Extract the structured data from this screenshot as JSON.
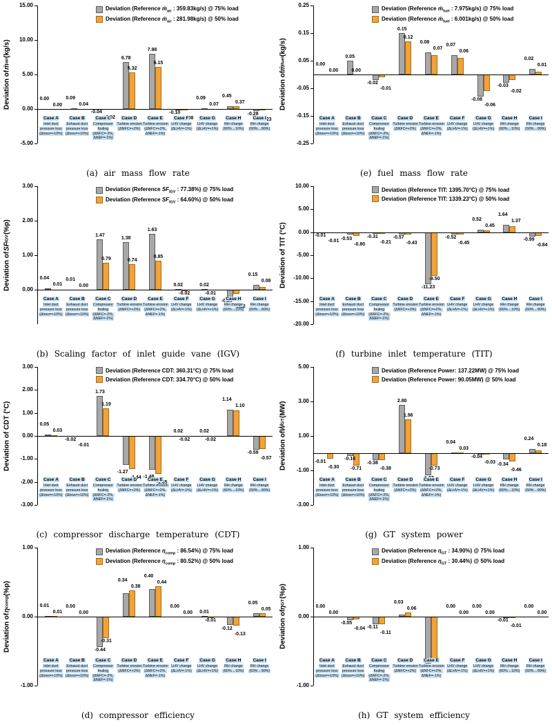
{
  "figure": {
    "background": "#ffffff"
  },
  "colors": {
    "load75": "#A8A8A8",
    "load75_border": "#5B5B5B",
    "load50": "#F2A237",
    "load50_border": "#A06C10",
    "case_highlight": "#C9E2F5",
    "axis": "#000000"
  },
  "cases": [
    {
      "header": "Case A",
      "lines": [
        "Inlet duct",
        "pressure loss",
        "(Δloss=+10%)"
      ]
    },
    {
      "header": "Case B",
      "lines": [
        "Exhaust duct",
        "pressure loss",
        "(Δloss=+10%)"
      ]
    },
    {
      "header": "Case C",
      "lines": [
        "Compressor",
        "fouling",
        "(ΔNFC=-2%,",
        "ΔNEF=-1%)"
      ]
    },
    {
      "header": "Case D",
      "lines": [
        "Turbine erosion",
        "(ΔNFC=+2%)"
      ]
    },
    {
      "header": "Case E",
      "lines": [
        "Turbine erosion",
        "(ΔNFC=+2%,",
        "ΔNEF=-1%)"
      ]
    },
    {
      "header": "Case F",
      "lines": [
        "LHV change",
        "(ΔLHV=-1%)"
      ]
    },
    {
      "header": "Case G",
      "lines": [
        "LHV change",
        "(ΔLHV=+1%)"
      ]
    },
    {
      "header": "Case H",
      "lines": [
        "RH change",
        "(60%→10%)"
      ]
    },
    {
      "header": "Case I",
      "lines": [
        "RH change",
        "(60%→90%)"
      ]
    }
  ],
  "chart_data": [
    {
      "type": "bar",
      "caption": "(a) air mass flow rate",
      "ylabel": {
        "prefix": "Deviation of ",
        "sym": "ṁ",
        "sub": "air",
        "unit": " (kg/s)"
      },
      "ylim": [
        -5,
        15
      ],
      "yticks": [
        15,
        10,
        5,
        0,
        -5
      ],
      "ytick_labels": [
        "15.00",
        "10.00",
        "5.00",
        "0.00",
        "-5.00"
      ],
      "grid": false,
      "legend_position": "top",
      "categories": [
        "Case A",
        "Case B",
        "Case C",
        "Case D",
        "Case E",
        "Case F",
        "Case G",
        "Case H",
        "Case I"
      ],
      "series": [
        {
          "name": "75% load",
          "color": "load75",
          "legend": {
            "pre": "Deviation (Reference ",
            "sym": "ṁ",
            "sub": "air",
            "post": " : 359.83kg/s) @ 75% load"
          },
          "values": [
            0.0,
            0.09,
            -0.04,
            6.78,
            7.98,
            -0.1,
            0.09,
            0.45,
            -0.28
          ]
        },
        {
          "name": "50% load",
          "color": "load50",
          "legend": {
            "pre": "Deviation (Reference ",
            "sym": "ṁ",
            "sub": "air",
            "post": " : 281.98kg/s) @ 50% load"
          },
          "values": [
            0.0,
            0.04,
            -0.02,
            5.32,
            6.15,
            -0.08,
            0.07,
            0.37,
            -0.23
          ]
        }
      ]
    },
    {
      "type": "bar",
      "caption": "(e) fuel mass flow rate",
      "ylabel": {
        "prefix": "Deviation of ",
        "sym": "ṁ",
        "sub": "fuel",
        "unit": " (kg/s)"
      },
      "ylim": [
        -0.25,
        0.25
      ],
      "yticks": [
        0.25,
        0.15,
        0.05,
        -0.05,
        -0.15,
        -0.25
      ],
      "ytick_labels": [
        "0.25",
        "0.15",
        "0.05",
        "-0.05",
        "-0.15",
        "-0.25"
      ],
      "grid": false,
      "legend_position": "top",
      "categories": [
        "Case A",
        "Case B",
        "Case C",
        "Case D",
        "Case E",
        "Case F",
        "Case G",
        "Case H",
        "Case I"
      ],
      "series": [
        {
          "name": "75% load",
          "color": "load75",
          "legend": {
            "pre": "Deviation (Reference ",
            "sym": "ṁ",
            "sub": "fuel",
            "post": " : 7.975kg/s) @ 75% load"
          },
          "values": [
            0.0,
            0.05,
            -0.02,
            0.15,
            0.08,
            0.07,
            -0.08,
            -0.03,
            0.02
          ]
        },
        {
          "name": "50% load",
          "color": "load50",
          "legend": {
            "pre": "Deviation (Reference ",
            "sym": "ṁ",
            "sub": "fuel",
            "post": " : 6.001kg/s) @ 50% load"
          },
          "values": [
            0.0,
            0.0,
            -0.01,
            0.12,
            0.07,
            0.06,
            -0.06,
            -0.02,
            0.01
          ]
        }
      ]
    },
    {
      "type": "bar",
      "caption": "(b) Scaling factor of inlet guide vane (IGV)",
      "ylabel": {
        "prefix": "Deviation of ",
        "sym": "SF",
        "sub": "IGV",
        "unit": " (%p)"
      },
      "ylim": [
        -1,
        3
      ],
      "yticks": [
        3,
        2,
        1,
        0
      ],
      "ytick_labels": [
        "3.00",
        "2.00",
        "1.00",
        "0.00"
      ],
      "grid": false,
      "legend_position": "top",
      "categories": [
        "Case A",
        "Case B",
        "Case C",
        "Case D",
        "Case E",
        "Case F",
        "Case G",
        "Case H",
        "Case I"
      ],
      "series": [
        {
          "name": "75% load",
          "color": "load75",
          "legend": {
            "pre": "Deviation (Reference ",
            "sym": "SF",
            "sub": "IGV",
            "post": " : 77.38%) @ 75% load"
          },
          "values": [
            0.04,
            0.01,
            1.47,
            1.38,
            1.63,
            0.02,
            0.02,
            -0.23,
            0.15
          ]
        },
        {
          "name": "50% load",
          "color": "load50",
          "legend": {
            "pre": "Deviation (Reference ",
            "sym": "SF",
            "sub": "IGV",
            "post": " : 64.60%) @ 50% load"
          },
          "values": [
            0.01,
            0.0,
            0.79,
            0.74,
            0.85,
            -0.02,
            -0.01,
            -0.12,
            0.08
          ]
        }
      ]
    },
    {
      "type": "bar",
      "caption": "(f) turbine inlet temperature (TIT)",
      "ylabel": {
        "prefix": "Deviation of TIT (°C)",
        "sym": "",
        "sub": "",
        "unit": ""
      },
      "ylim": [
        -20,
        10
      ],
      "yticks": [
        10,
        5,
        0,
        -5,
        -10,
        -15,
        -20
      ],
      "ytick_labels": [
        "10.00",
        "5.00",
        "0.00",
        "-5.00",
        "-10.00",
        "-15.00",
        "-20.00"
      ],
      "grid": false,
      "legend_position": "top",
      "categories": [
        "Case A",
        "Case B",
        "Case C",
        "Case D",
        "Case E",
        "Case F",
        "Case G",
        "Case H",
        "Case I"
      ],
      "series": [
        {
          "name": "75% load",
          "color": "load75",
          "legend": {
            "pre": "Deviation (Reference TIT: 1395.70°C) @ 75% load",
            "sym": "",
            "sub": "",
            "post": ""
          },
          "values": [
            -0.01,
            -0.53,
            -0.31,
            -0.57,
            -11.23,
            -0.52,
            0.52,
            1.64,
            -0.99
          ]
        },
        {
          "name": "50% load",
          "color": "load50",
          "legend": {
            "pre": "Deviation (Reference TIT: 1339.23°C) @ 50% load",
            "sym": "",
            "sub": "",
            "post": ""
          },
          "values": [
            -0.01,
            -0.8,
            -0.21,
            -0.43,
            -9.5,
            -0.45,
            0.45,
            1.37,
            -0.84
          ]
        }
      ]
    },
    {
      "type": "bar",
      "caption": "(c) compressor discharge temperature (CDT)",
      "ylabel": {
        "prefix": "Deviation of CDT (°C)",
        "sym": "",
        "sub": "",
        "unit": ""
      },
      "ylim": [
        -3,
        3
      ],
      "yticks": [
        3,
        2,
        1,
        0,
        -1,
        -2,
        -3
      ],
      "ytick_labels": [
        "3.00",
        "2.00",
        "1.00",
        "0.00",
        "-1.00",
        "-2.00",
        "-3.00"
      ],
      "grid": false,
      "legend_position": "top",
      "categories": [
        "Case A",
        "Case B",
        "Case C",
        "Case D",
        "Case E",
        "Case F",
        "Case G",
        "Case H",
        "Case I"
      ],
      "series": [
        {
          "name": "75% load",
          "color": "load75",
          "legend": {
            "pre": "Deviation (Reference CDT: 360.31°C) @ 75% load",
            "sym": "",
            "sub": "",
            "post": ""
          },
          "values": [
            0.05,
            -0.02,
            1.73,
            -1.27,
            -1.48,
            0.02,
            0.02,
            1.14,
            -0.59
          ]
        },
        {
          "name": "50% load",
          "color": "load50",
          "legend": {
            "pre": "Deviation (Reference CDT: 334.70°C) @ 50% load",
            "sym": "",
            "sub": "",
            "post": ""
          },
          "values": [
            0.03,
            -0.01,
            1.19,
            -1.44,
            -1.65,
            -0.02,
            -0.02,
            1.1,
            -0.57
          ]
        }
      ]
    },
    {
      "type": "bar",
      "caption": "(g) GT system power",
      "ylabel": {
        "prefix": "Deviation of ",
        "sym": "Ẇ",
        "sub": "GT",
        "unit": " (MW)"
      },
      "ylim": [
        -3,
        5
      ],
      "yticks": [
        5,
        3,
        1,
        -1,
        -3
      ],
      "ytick_labels": [
        "5.00",
        "3.00",
        "1.00",
        "-1.00",
        "-3.00"
      ],
      "grid": false,
      "legend_position": "top",
      "categories": [
        "Case A",
        "Case B",
        "Case C",
        "Case D",
        "Case E",
        "Case F",
        "Case G",
        "Case H",
        "Case I"
      ],
      "series": [
        {
          "name": "75% load",
          "color": "load75",
          "legend": {
            "pre": "Deviation (Reference Power: 137.22MW) @ 75% load",
            "sym": "",
            "sub": "",
            "post": ""
          },
          "values": [
            -0.01,
            -0.16,
            -0.38,
            2.8,
            -1.27,
            0.04,
            -0.04,
            -0.34,
            0.24
          ]
        },
        {
          "name": "50% load",
          "color": "load50",
          "legend": {
            "pre": "Deviation (Reference Power: 90.05MW) @ 50% load",
            "sym": "",
            "sub": "",
            "post": ""
          },
          "values": [
            -0.3,
            -0.71,
            -0.38,
            1.96,
            -0.73,
            0.03,
            -0.03,
            -0.46,
            0.18
          ]
        }
      ]
    },
    {
      "type": "bar",
      "caption": "(d) compressor efficiency",
      "ylabel": {
        "prefix": "Deviation of ",
        "sym": "η",
        "sub": "comp",
        "unit": " (%p)"
      },
      "ylim": [
        -1,
        1
      ],
      "yticks": [
        1,
        0,
        -1
      ],
      "ytick_labels": [
        "1.00",
        "0.00",
        "-1.00"
      ],
      "grid": false,
      "legend_position": "top",
      "categories": [
        "Case A",
        "Case B",
        "Case C",
        "Case D",
        "Case E",
        "Case F",
        "Case G",
        "Case H",
        "Case I"
      ],
      "series": [
        {
          "name": "75% load",
          "color": "load75",
          "legend": {
            "pre": "Deviation (Reference ",
            "sym": "η",
            "sub": "comp",
            "post": " : 86.54%) @ 75% load"
          },
          "values": [
            0.01,
            0.0,
            -0.44,
            0.34,
            0.4,
            0.0,
            0.01,
            -0.12,
            0.05
          ]
        },
        {
          "name": "50% load",
          "color": "load50",
          "legend": {
            "pre": "Deviation (Reference ",
            "sym": "η",
            "sub": "comp",
            "post": " : 80.52%) @ 50% load"
          },
          "values": [
            0.01,
            0.0,
            -0.31,
            0.38,
            0.44,
            0.0,
            -0.01,
            -0.13,
            0.05
          ]
        }
      ]
    },
    {
      "type": "bar",
      "caption": "(h) GT system efficiency",
      "ylabel": {
        "prefix": "Deviation of ",
        "sym": "η",
        "sub": "GT",
        "unit": " (%p)"
      },
      "ylim": [
        -1,
        1
      ],
      "yticks": [
        1,
        0,
        -1
      ],
      "ytick_labels": [
        "1.00",
        "0.00",
        "-1.00"
      ],
      "grid": false,
      "legend_position": "top",
      "categories": [
        "Case A",
        "Case B",
        "Case C",
        "Case D",
        "Case E",
        "Case F",
        "Case G",
        "Case H",
        "Case I"
      ],
      "series": [
        {
          "name": "75% load",
          "color": "load75",
          "legend": {
            "pre": "Deviation (Reference ",
            "sym": "η",
            "sub": "GT",
            "post": " : 34.90%) @ 75% load"
          },
          "values": [
            0.0,
            -0.05,
            -0.11,
            0.03,
            -0.68,
            0.0,
            0.0,
            -0.01,
            0.0
          ]
        },
        {
          "name": "50% load",
          "color": "load50",
          "legend": {
            "pre": "Deviation (Reference ",
            "sym": "η",
            "sub": "GT",
            "post": " : 30.44%) @ 50% load"
          },
          "values": [
            0.0,
            -0.04,
            -0.11,
            0.06,
            -0.61,
            0.0,
            0.0,
            -0.01,
            0.0
          ]
        }
      ]
    }
  ]
}
